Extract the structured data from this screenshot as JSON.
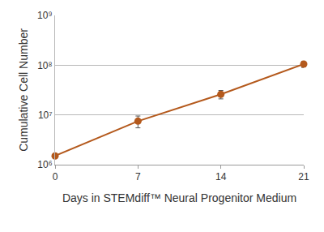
{
  "chart_data": {
    "type": "line",
    "x_label": "Days in STEMdiff™ Neural Progenitor Medium",
    "y_label": "Cumulative Cell Number",
    "x": [
      0,
      7,
      14,
      21
    ],
    "values": [
      1500000,
      7500000,
      26000000,
      105000000
    ],
    "errors": [
      100000,
      2000000,
      5000000,
      15000000
    ],
    "color": "#b4591c",
    "marker": "circle",
    "line_style": "solid",
    "log": "y",
    "grid": true,
    "xlim": [
      0,
      21
    ],
    "xticks": [
      0,
      7,
      14,
      21
    ],
    "ylim": [
      1000000,
      1000000000
    ],
    "yticks": [
      {
        "value": 1000000,
        "label": "10⁶"
      },
      {
        "value": 10000000,
        "label": "10⁷"
      },
      {
        "value": 100000000,
        "label": "10⁸"
      },
      {
        "value": 1000000000,
        "label": "10⁹"
      }
    ]
  }
}
